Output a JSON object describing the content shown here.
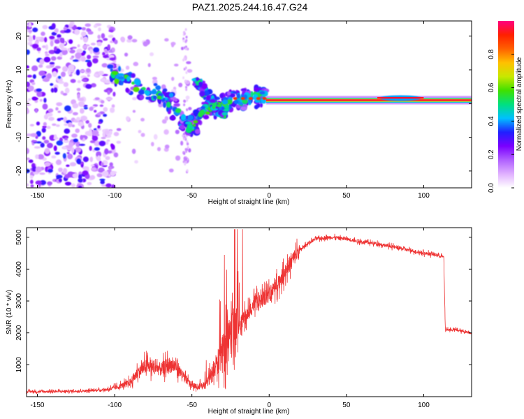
{
  "title": "PAZ1.2025.244.16.47.G24",
  "chart_data": [
    {
      "type": "heatmap",
      "title": "PAZ1.2025.244.16.47.G24",
      "xlabel": "Height of straight line (km)",
      "ylabel": "Frequency (Hz)",
      "xlim": [
        -157,
        131
      ],
      "ylim": [
        -25,
        24.5
      ],
      "xticks": [
        -150,
        -100,
        -50,
        0,
        50,
        100
      ],
      "yticks": [
        20,
        10,
        0,
        -10,
        -20
      ],
      "colorbar": {
        "label": "Normalized spectral amplitude",
        "range": [
          0.0,
          1.0
        ],
        "ticks": [
          "0.0",
          "0.2",
          "0.4",
          "0.6",
          "0.8"
        ],
        "colors": [
          "#ffffff",
          "#e0b0ff",
          "#b060ff",
          "#7a00ff",
          "#2020ff",
          "#00c0ff",
          "#00e080",
          "#40e000",
          "#c8e800",
          "#ffc000",
          "#ff6000",
          "#ff2000",
          "#ff0080"
        ]
      },
      "features": {
        "carrier_ridge": {
          "x_start": 0,
          "x_end": 131,
          "freq": 1.0,
          "amplitude": 0.95
        },
        "main_ridge": [
          [
            -103,
            9
          ],
          [
            -90,
            6
          ],
          [
            -75,
            3
          ],
          [
            -65,
            1
          ],
          [
            -58,
            -4
          ],
          [
            -52,
            -7
          ],
          [
            -48,
            -6
          ],
          [
            -43,
            -2
          ],
          [
            -38,
            -1
          ],
          [
            -33,
            -1
          ],
          [
            -28,
            0
          ],
          [
            -22,
            1
          ],
          [
            -15,
            1.5
          ],
          [
            -8,
            2
          ],
          [
            -3,
            2
          ]
        ],
        "secondary_ridge": [
          [
            -48,
            7
          ],
          [
            -42,
            4
          ],
          [
            -36,
            0
          ],
          [
            -31,
            -3
          ],
          [
            -27,
            -2
          ]
        ],
        "scatter_noise": {
          "x_range": [
            -157,
            -100
          ],
          "freq_range": [
            -25,
            24
          ],
          "amplitude": 0.3
        }
      }
    },
    {
      "type": "line",
      "xlabel": "Height of straight line (km)",
      "ylabel": "SNR (10 * v/v)",
      "xlim": [
        -157,
        131
      ],
      "ylim": [
        0,
        5300
      ],
      "xticks": [
        -150,
        -100,
        -50,
        0,
        50,
        100
      ],
      "yticks": [
        1000,
        2000,
        3000,
        4000,
        5000
      ],
      "color": "#ee3333",
      "x": [
        -157,
        -140,
        -120,
        -105,
        -98,
        -90,
        -85,
        -80,
        -75,
        -70,
        -65,
        -60,
        -55,
        -50,
        -45,
        -40,
        -35,
        -30,
        -25,
        -20,
        -15,
        -10,
        -5,
        0,
        5,
        10,
        15,
        20,
        25,
        30,
        40,
        50,
        60,
        70,
        80,
        90,
        100,
        108,
        112,
        113,
        114,
        115,
        120,
        125,
        131
      ],
      "y": [
        160,
        160,
        180,
        220,
        300,
        450,
        750,
        950,
        950,
        850,
        1000,
        950,
        600,
        350,
        300,
        450,
        900,
        1400,
        1900,
        2200,
        2500,
        2900,
        3000,
        3200,
        3500,
        3900,
        4300,
        4600,
        4800,
        4950,
        5000,
        4950,
        4850,
        4800,
        4700,
        4600,
        4500,
        4450,
        4400,
        4350,
        2100,
        2100,
        2100,
        2050,
        2000
      ]
    }
  ]
}
